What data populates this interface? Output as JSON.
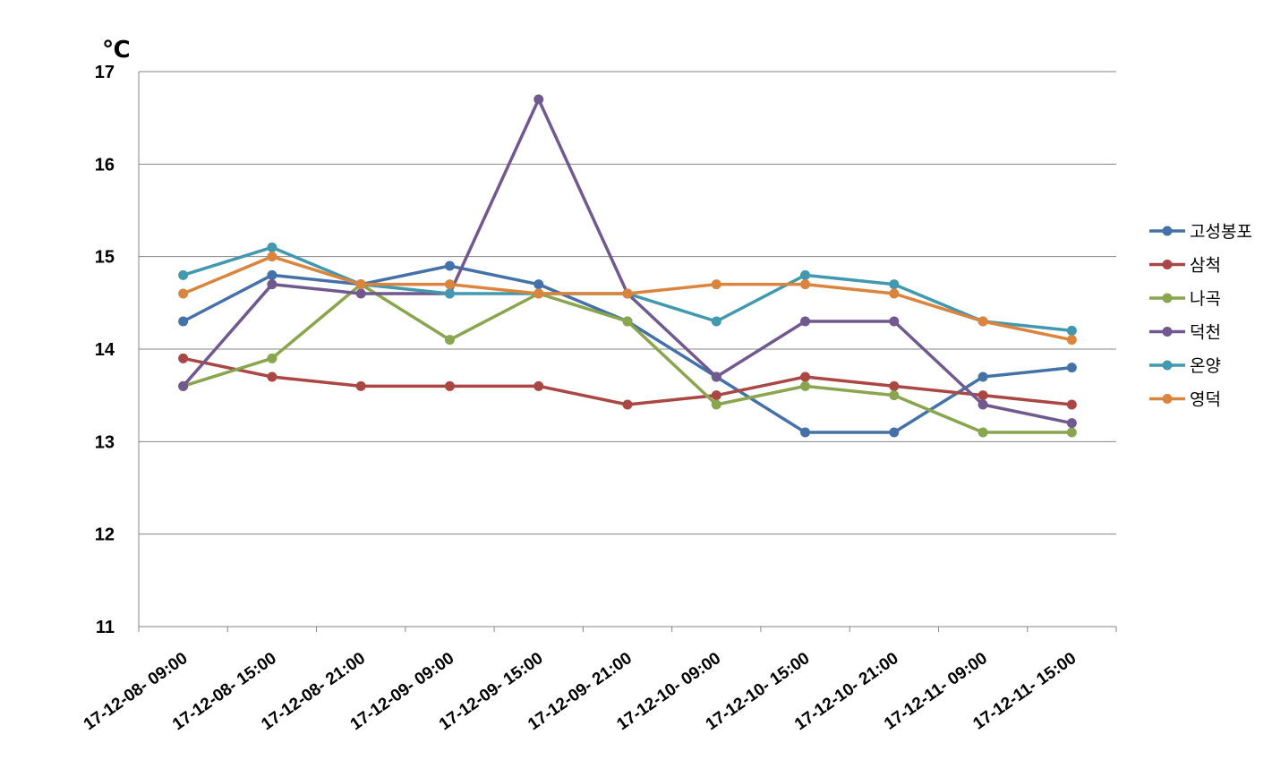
{
  "chart_data": {
    "type": "line",
    "title": "",
    "ylabel": "℃",
    "xlabel": "",
    "ylim": [
      11,
      17
    ],
    "yticks": [
      11,
      12,
      13,
      14,
      15,
      16,
      17
    ],
    "grid": true,
    "legend_position": "right",
    "categories": [
      "17-12-08- 09:00",
      "17-12-08- 15:00",
      "17-12-08- 21:00",
      "17-12-09- 09:00",
      "17-12-09- 15:00",
      "17-12-09- 21:00",
      "17-12-10- 09:00",
      "17-12-10- 15:00",
      "17-12-10- 21:00",
      "17-12-11- 09:00",
      "17-12-11- 15:00"
    ],
    "series": [
      {
        "name": "고성봉포",
        "color": "#4472a8",
        "values": [
          14.3,
          14.8,
          14.7,
          14.9,
          14.7,
          14.3,
          13.7,
          13.1,
          13.1,
          13.7,
          13.8
        ]
      },
      {
        "name": "삼척",
        "color": "#aa4643",
        "values": [
          13.9,
          13.7,
          13.6,
          13.6,
          13.6,
          13.4,
          13.5,
          13.7,
          13.6,
          13.5,
          13.4
        ]
      },
      {
        "name": "나곡",
        "color": "#89a54e",
        "values": [
          13.6,
          13.9,
          14.7,
          14.1,
          14.6,
          14.3,
          13.4,
          13.6,
          13.5,
          13.1,
          13.1
        ]
      },
      {
        "name": "덕천",
        "color": "#71588f",
        "values": [
          13.6,
          14.7,
          14.6,
          14.6,
          16.7,
          14.6,
          13.7,
          14.3,
          14.3,
          13.4,
          13.2
        ]
      },
      {
        "name": "온양",
        "color": "#4198af",
        "values": [
          14.8,
          15.1,
          14.7,
          14.6,
          14.6,
          14.6,
          14.3,
          14.8,
          14.7,
          14.3,
          14.2
        ]
      },
      {
        "name": "영덕",
        "color": "#db843d",
        "values": [
          14.6,
          15.0,
          14.7,
          14.7,
          14.6,
          14.6,
          14.7,
          14.7,
          14.6,
          14.3,
          14.1
        ]
      }
    ]
  }
}
